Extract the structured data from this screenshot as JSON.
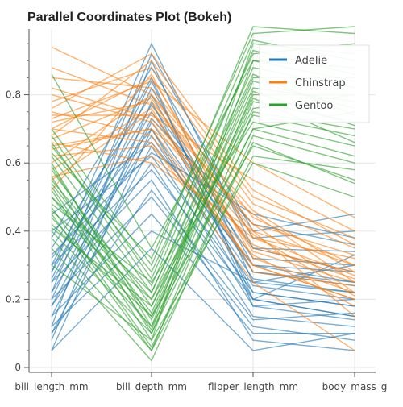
{
  "chart_data": {
    "type": "parallel-coordinates",
    "title": "Parallel Coordinates Plot (Bokeh)",
    "axes": [
      "bill_length_mm",
      "bill_depth_mm",
      "flipper_length_mm",
      "body_mass_g"
    ],
    "y_ticks": [
      "0",
      "0.2",
      "0.4",
      "0.6",
      "0.8"
    ],
    "ylim": [
      0,
      1
    ],
    "grid": true,
    "legend_position": "top-right",
    "series": [
      {
        "name": "Adelie",
        "color": "#1f77b4",
        "lines": [
          [
            0.05,
            0.7,
            0.2,
            0.15
          ],
          [
            0.08,
            0.78,
            0.22,
            0.18
          ],
          [
            0.1,
            0.65,
            0.18,
            0.2
          ],
          [
            0.12,
            0.9,
            0.25,
            0.22
          ],
          [
            0.15,
            0.72,
            0.28,
            0.25
          ],
          [
            0.18,
            0.6,
            0.15,
            0.12
          ],
          [
            0.2,
            0.82,
            0.3,
            0.28
          ],
          [
            0.22,
            0.68,
            0.24,
            0.2
          ],
          [
            0.25,
            0.75,
            0.32,
            0.3
          ],
          [
            0.28,
            0.95,
            0.35,
            0.34
          ],
          [
            0.3,
            0.58,
            0.2,
            0.15
          ],
          [
            0.32,
            0.7,
            0.26,
            0.22
          ],
          [
            0.35,
            0.8,
            0.28,
            0.24
          ],
          [
            0.38,
            0.88,
            0.38,
            0.4
          ],
          [
            0.4,
            0.62,
            0.22,
            0.18
          ],
          [
            0.2,
            0.5,
            0.12,
            0.08
          ],
          [
            0.15,
            0.45,
            0.1,
            0.1
          ],
          [
            0.25,
            0.55,
            0.08,
            0.05
          ],
          [
            0.3,
            0.85,
            0.18,
            0.14
          ],
          [
            0.12,
            0.4,
            0.25,
            0.3
          ],
          [
            0.45,
            0.66,
            0.3,
            0.25
          ],
          [
            0.18,
            0.73,
            0.42,
            0.36
          ],
          [
            0.22,
            0.92,
            0.4,
            0.45
          ],
          [
            0.1,
            0.52,
            0.14,
            0.16
          ],
          [
            0.28,
            0.77,
            0.35,
            0.28
          ],
          [
            0.05,
            0.35,
            0.05,
            0.1
          ],
          [
            0.33,
            0.63,
            0.45,
            0.38
          ],
          [
            0.26,
            0.84,
            0.2,
            0.33
          ]
        ]
      },
      {
        "name": "Chinstrap",
        "color": "#ff7f0e",
        "lines": [
          [
            0.55,
            0.75,
            0.35,
            0.28
          ],
          [
            0.6,
            0.8,
            0.4,
            0.3
          ],
          [
            0.65,
            0.7,
            0.45,
            0.25
          ],
          [
            0.7,
            0.85,
            0.38,
            0.32
          ],
          [
            0.72,
            0.78,
            0.42,
            0.22
          ],
          [
            0.75,
            0.68,
            0.3,
            0.2
          ],
          [
            0.78,
            0.88,
            0.48,
            0.35
          ],
          [
            0.8,
            0.72,
            0.36,
            0.26
          ],
          [
            0.62,
            0.65,
            0.33,
            0.18
          ],
          [
            0.68,
            0.9,
            0.5,
            0.38
          ],
          [
            0.58,
            0.76,
            0.28,
            0.24
          ],
          [
            0.85,
            0.82,
            0.44,
            0.3
          ],
          [
            0.66,
            0.6,
            0.4,
            0.15
          ],
          [
            0.74,
            0.74,
            0.55,
            0.4
          ],
          [
            0.52,
            0.86,
            0.32,
            0.22
          ],
          [
            0.94,
            0.8,
            0.46,
            0.28
          ],
          [
            0.7,
            0.66,
            0.25,
            0.05
          ],
          [
            0.76,
            0.92,
            0.52,
            0.36
          ],
          [
            0.64,
            0.7,
            0.3,
            0.2
          ],
          [
            0.88,
            0.77,
            0.42,
            0.33
          ],
          [
            0.56,
            0.62,
            0.38,
            0.27
          ],
          [
            0.73,
            0.84,
            0.6,
            0.44
          ],
          [
            0.67,
            0.79,
            0.34,
            0.25
          ],
          [
            0.82,
            0.73,
            0.39,
            0.21
          ]
        ]
      },
      {
        "name": "Gentoo",
        "color": "#2ca02c",
        "lines": [
          [
            0.4,
            0.1,
            0.7,
            0.75
          ],
          [
            0.5,
            0.15,
            0.8,
            0.8
          ],
          [
            0.45,
            0.05,
            0.75,
            0.7
          ],
          [
            0.55,
            0.2,
            0.85,
            0.85
          ],
          [
            0.6,
            0.12,
            0.9,
            0.88
          ],
          [
            0.48,
            0.25,
            0.72,
            0.65
          ],
          [
            0.52,
            0.08,
            0.95,
            0.92
          ],
          [
            0.58,
            0.18,
            0.82,
            0.78
          ],
          [
            0.62,
            0.22,
            0.88,
            0.82
          ],
          [
            0.35,
            0.02,
            0.68,
            0.6
          ],
          [
            0.65,
            0.28,
            0.92,
            0.95
          ],
          [
            0.42,
            0.15,
            0.65,
            0.55
          ],
          [
            0.56,
            0.1,
            0.78,
            0.72
          ],
          [
            0.7,
            0.3,
            1.0,
            0.98
          ],
          [
            0.46,
            0.2,
            0.74,
            0.68
          ],
          [
            0.38,
            0.05,
            0.62,
            0.58
          ],
          [
            0.54,
            0.16,
            0.84,
            0.76
          ],
          [
            0.68,
            0.26,
            0.96,
            0.9
          ],
          [
            0.44,
            0.12,
            0.7,
            0.62
          ],
          [
            0.86,
            0.35,
            0.9,
            0.84
          ],
          [
            0.3,
            0.08,
            0.6,
            0.5
          ],
          [
            0.5,
            0.22,
            0.86,
            0.74
          ],
          [
            0.59,
            0.14,
            0.79,
            0.66
          ],
          [
            0.63,
            0.32,
            0.98,
            1.0
          ],
          [
            0.41,
            0.18,
            0.76,
            0.8
          ],
          [
            0.47,
            0.06,
            0.66,
            0.54
          ],
          [
            0.66,
            0.24,
            0.93,
            0.86
          ],
          [
            0.53,
            0.11,
            0.81,
            0.71
          ]
        ]
      }
    ]
  }
}
